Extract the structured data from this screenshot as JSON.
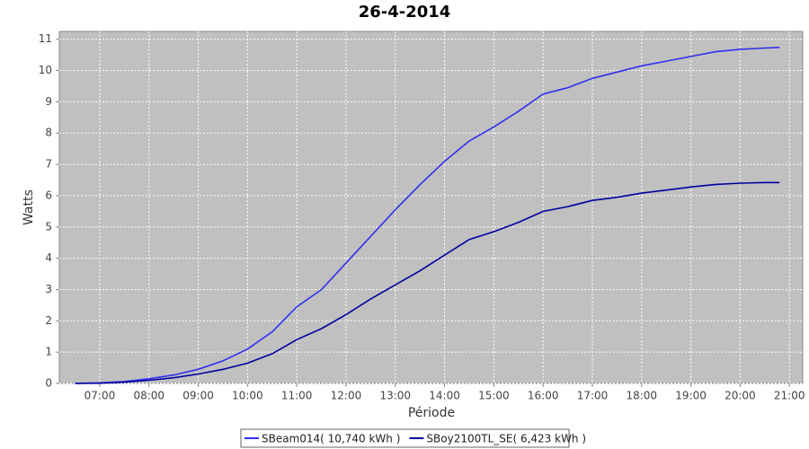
{
  "chart_data": {
    "type": "line",
    "title": "26-4-2014",
    "x_label": "Période",
    "y_label": "Watts",
    "x": [
      6.5,
      7,
      7.5,
      8,
      8.5,
      9,
      9.5,
      10,
      10.5,
      11,
      11.5,
      12,
      12.5,
      13,
      13.5,
      14,
      14.5,
      15,
      15.5,
      16,
      16.5,
      17,
      17.5,
      18,
      18.5,
      19,
      19.5,
      20,
      20.5,
      20.8
    ],
    "series": [
      {
        "name": "SBeam014( 10,740 kWh )",
        "color": "#3030f0",
        "values": [
          0,
          0.02,
          0.06,
          0.15,
          0.27,
          0.45,
          0.72,
          1.1,
          1.65,
          2.45,
          3.0,
          3.85,
          4.7,
          5.55,
          6.35,
          7.1,
          7.75,
          8.2,
          8.7,
          9.25,
          9.45,
          9.75,
          9.95,
          10.15,
          10.3,
          10.45,
          10.6,
          10.68,
          10.72,
          10.74
        ]
      },
      {
        "name": "SBoy2100TL_SE( 6,423 kWh )",
        "color": "#0000a0",
        "values": [
          0,
          0.01,
          0.04,
          0.1,
          0.18,
          0.3,
          0.45,
          0.65,
          0.95,
          1.4,
          1.75,
          2.2,
          2.7,
          3.15,
          3.6,
          4.1,
          4.6,
          4.85,
          5.15,
          5.5,
          5.65,
          5.85,
          5.95,
          6.08,
          6.18,
          6.28,
          6.36,
          6.4,
          6.42,
          6.42
        ]
      }
    ],
    "xlim": [
      6.18,
      21.27
    ],
    "xticks": [
      {
        "value": 7,
        "label": "07:00"
      },
      {
        "value": 8,
        "label": "08:00"
      },
      {
        "value": 9,
        "label": "09:00"
      },
      {
        "value": 10,
        "label": "10:00"
      },
      {
        "value": 11,
        "label": "11:00"
      },
      {
        "value": 12,
        "label": "12:00"
      },
      {
        "value": 13,
        "label": "13:00"
      },
      {
        "value": 14,
        "label": "14:00"
      },
      {
        "value": 15,
        "label": "15:00"
      },
      {
        "value": 16,
        "label": "16:00"
      },
      {
        "value": 17,
        "label": "17:00"
      },
      {
        "value": 18,
        "label": "18:00"
      },
      {
        "value": 19,
        "label": "19:00"
      },
      {
        "value": 20,
        "label": "20:00"
      },
      {
        "value": 21,
        "label": "21:00"
      }
    ],
    "ylim": [
      0,
      11.25
    ],
    "yticks": [
      0,
      1,
      2,
      3,
      4,
      5,
      6,
      7,
      8,
      9,
      10,
      11
    ],
    "grid": true
  }
}
